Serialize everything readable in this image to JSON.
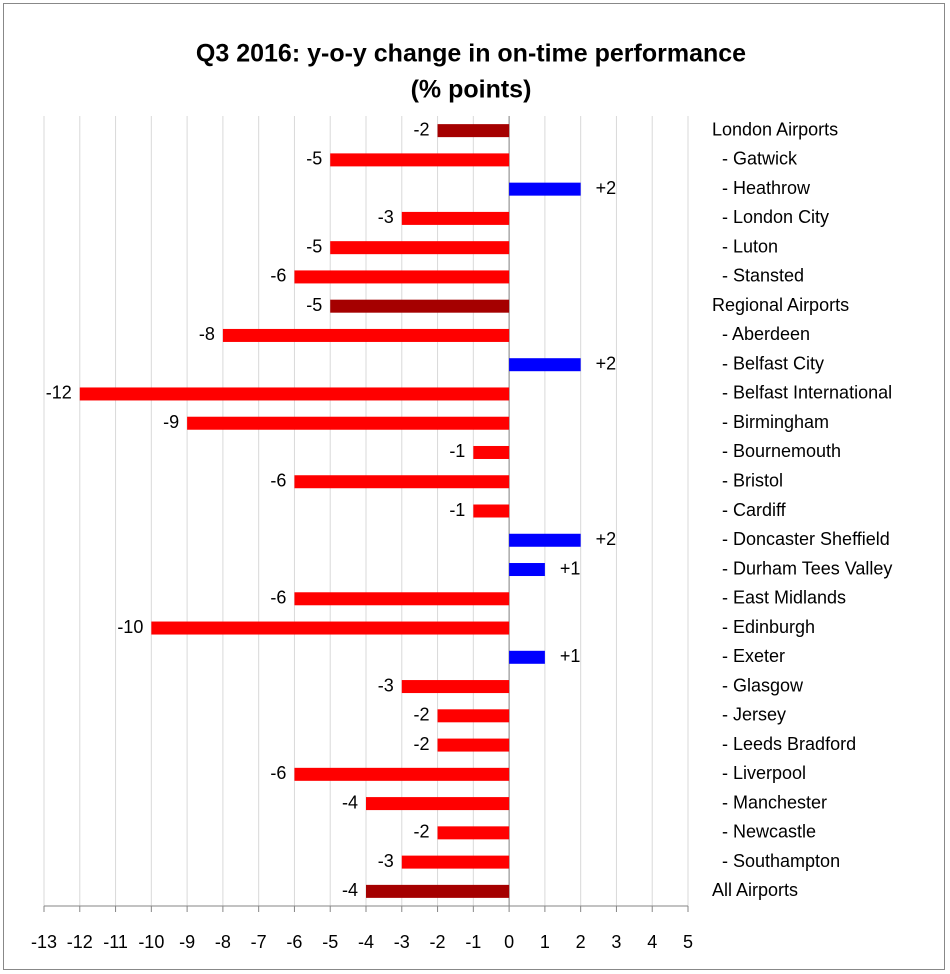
{
  "chart_data": {
    "type": "bar",
    "orientation": "horizontal",
    "title": "Q3 2016: y-o-y change in on-time performance",
    "subtitle": "(% points)",
    "categories": [
      "London Airports",
      "  - Gatwick",
      "  - Heathrow",
      "  - London City",
      "  - Luton",
      "  - Stansted",
      "Regional Airports",
      "  - Aberdeen",
      "  - Belfast City",
      "  - Belfast International",
      "  - Birmingham",
      "  - Bournemouth",
      "  - Bristol",
      "  - Cardiff",
      "  - Doncaster Sheffield",
      "  - Durham Tees Valley",
      "  - East Midlands",
      "  - Edinburgh",
      "  - Exeter",
      "  - Glasgow",
      "  - Jersey",
      "  - Leeds Bradford",
      "  - Liverpool",
      "  - Manchester",
      "  - Newcastle",
      "  - Southampton",
      "All Airports"
    ],
    "values": [
      -2,
      -5,
      2,
      -3,
      -5,
      -6,
      -5,
      -8,
      2,
      -12,
      -9,
      -1,
      -6,
      -1,
      2,
      1,
      -6,
      -10,
      1,
      -3,
      -2,
      -2,
      -6,
      -4,
      -2,
      -3,
      -4
    ],
    "value_labels": [
      "-2",
      "-5",
      "+2",
      "-3",
      "-5",
      "-6",
      "-5",
      "-8",
      "+2",
      "-12",
      "-9",
      "-1",
      "-6",
      "-1",
      "+2",
      "+1",
      "-6",
      "-10",
      "+1",
      "-3",
      "-2",
      "-2",
      "-6",
      "-4",
      "-2",
      "-3",
      "-4"
    ],
    "colors": [
      "#a50000",
      "#ff0000",
      "#0000ff",
      "#ff0000",
      "#ff0000",
      "#ff0000",
      "#a50000",
      "#ff0000",
      "#0000ff",
      "#ff0000",
      "#ff0000",
      "#ff0000",
      "#ff0000",
      "#ff0000",
      "#0000ff",
      "#0000ff",
      "#ff0000",
      "#ff0000",
      "#0000ff",
      "#ff0000",
      "#ff0000",
      "#ff0000",
      "#ff0000",
      "#ff0000",
      "#ff0000",
      "#ff0000",
      "#a50000"
    ],
    "xlim": [
      -13,
      5
    ],
    "xticks": [
      -13,
      -12,
      -11,
      -10,
      -9,
      -8,
      -7,
      -6,
      -5,
      -4,
      -3,
      -2,
      -1,
      0,
      1,
      2,
      3,
      4,
      5
    ],
    "grid": true
  }
}
